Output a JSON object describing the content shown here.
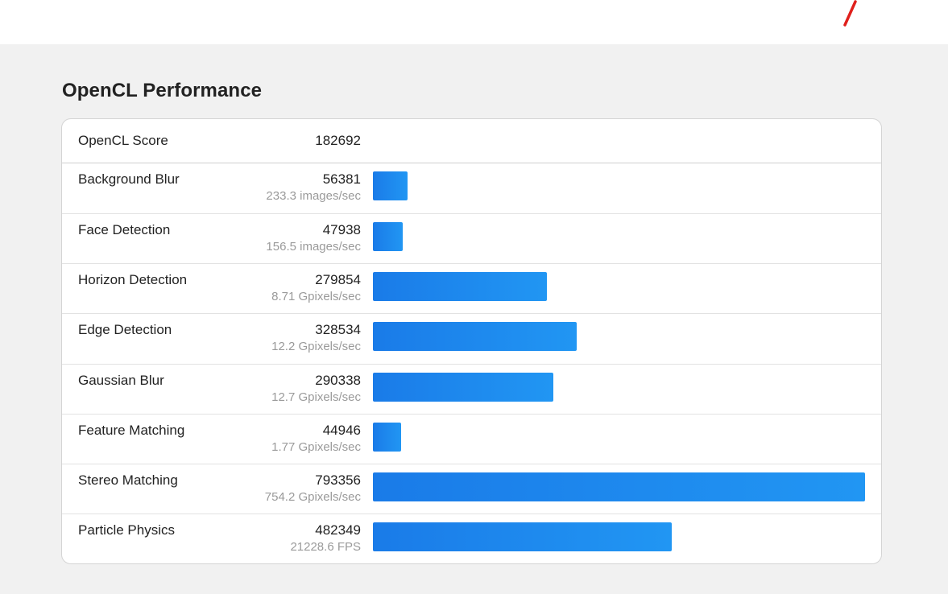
{
  "section_title": "OpenCL Performance",
  "accent_color": "#1c86ee",
  "brand_color": "#e0201c",
  "score": {
    "label": "OpenCL Score",
    "value": "182692"
  },
  "benchmarks": [
    {
      "name": "Background Blur",
      "score": "56381",
      "rate": "233.3 images/sec",
      "score_num": 56381
    },
    {
      "name": "Face Detection",
      "score": "47938",
      "rate": "156.5 images/sec",
      "score_num": 47938
    },
    {
      "name": "Horizon Detection",
      "score": "279854",
      "rate": "8.71 Gpixels/sec",
      "score_num": 279854
    },
    {
      "name": "Edge Detection",
      "score": "328534",
      "rate": "12.2 Gpixels/sec",
      "score_num": 328534
    },
    {
      "name": "Gaussian Blur",
      "score": "290338",
      "rate": "12.7 Gpixels/sec",
      "score_num": 290338
    },
    {
      "name": "Feature Matching",
      "score": "44946",
      "rate": "1.77 Gpixels/sec",
      "score_num": 44946
    },
    {
      "name": "Stereo Matching",
      "score": "793356",
      "rate": "754.2 Gpixels/sec",
      "score_num": 793356
    },
    {
      "name": "Particle Physics",
      "score": "482349",
      "rate": "21228.6 FPS",
      "score_num": 482349
    }
  ]
}
